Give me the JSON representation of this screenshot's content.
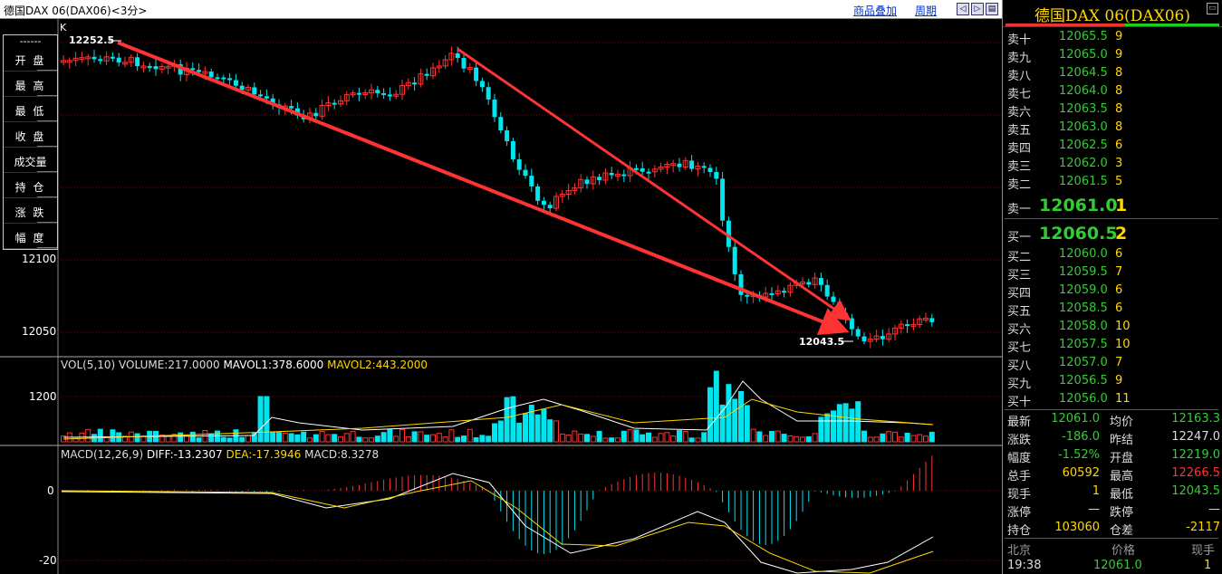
{
  "topbar": {
    "title": "德国DAX 06(DAX06)<3分>",
    "overlay_link": "商品叠加",
    "period_link": "周期",
    "btn_prev": "◁",
    "btn_next": "▷",
    "btn_menu": "▤"
  },
  "chart": {
    "k_label": "K",
    "high_mark": "12252.5",
    "low_mark": "12043.5",
    "price_axis": [
      "12100",
      "12050"
    ],
    "vol_axis": "1200",
    "macd_axis": [
      "0",
      "-20"
    ]
  },
  "infobox": {
    "dash": "------",
    "rows": [
      "开 盘",
      "最 高",
      "最 低",
      "收 盘",
      "成交量",
      "持 仓",
      "涨 跌",
      "幅 度"
    ]
  },
  "volume_indicator": {
    "name": "VOL(5,10)",
    "volume": "VOLUME:217.0000",
    "mavol1": "MAVOL1:378.6000",
    "mavol2": "MAVOL2:443.2000"
  },
  "macd_indicator": {
    "name": "MACD(12,26,9)",
    "diff": "DIFF:-13.2307",
    "dea": "DEA:-17.3946",
    "macd": "MACD:8.3278"
  },
  "panel": {
    "instrument": "德国DAX 06(DAX06)",
    "close_icon": "▭",
    "asks": [
      {
        "label": "卖十",
        "price": "12065.5",
        "vol": "9"
      },
      {
        "label": "卖九",
        "price": "12065.0",
        "vol": "9"
      },
      {
        "label": "卖八",
        "price": "12064.5",
        "vol": "8"
      },
      {
        "label": "卖七",
        "price": "12064.0",
        "vol": "8"
      },
      {
        "label": "卖六",
        "price": "12063.5",
        "vol": "8"
      },
      {
        "label": "卖五",
        "price": "12063.0",
        "vol": "8"
      },
      {
        "label": "卖四",
        "price": "12062.5",
        "vol": "6"
      },
      {
        "label": "卖三",
        "price": "12062.0",
        "vol": "3"
      },
      {
        "label": "卖二",
        "price": "12061.5",
        "vol": "5"
      }
    ],
    "ask1": {
      "label": "卖一",
      "price": "12061.0",
      "vol": "1"
    },
    "bid1": {
      "label": "买一",
      "price": "12060.5",
      "vol": "2"
    },
    "bids": [
      {
        "label": "买二",
        "price": "12060.0",
        "vol": "6"
      },
      {
        "label": "买三",
        "price": "12059.5",
        "vol": "7"
      },
      {
        "label": "买四",
        "price": "12059.0",
        "vol": "6"
      },
      {
        "label": "买五",
        "price": "12058.5",
        "vol": "6"
      },
      {
        "label": "买六",
        "price": "12058.0",
        "vol": "10"
      },
      {
        "label": "买七",
        "price": "12057.5",
        "vol": "10"
      },
      {
        "label": "买八",
        "price": "12057.0",
        "vol": "7"
      },
      {
        "label": "买九",
        "price": "12056.5",
        "vol": "9"
      },
      {
        "label": "买十",
        "price": "12056.0",
        "vol": "11"
      }
    ],
    "stats": [
      {
        "l1": "最新",
        "v1": "12061.0",
        "l2": "均价",
        "v2": "12163.3",
        "c1": "#33cc33",
        "c2": "#33cc33"
      },
      {
        "l1": "涨跌",
        "v1": "-186.0",
        "l2": "昨结",
        "v2": "12247.0",
        "c1": "#33cc33",
        "c2": "#dddddd"
      },
      {
        "l1": "幅度",
        "v1": "-1.52%",
        "l2": "开盘",
        "v2": "12219.0",
        "c1": "#33cc33",
        "c2": "#33cc33"
      },
      {
        "l1": "总手",
        "v1": "60592",
        "l2": "最高",
        "v2": "12266.5",
        "c1": "#ffd700",
        "c2": "#ff3333"
      },
      {
        "l1": "现手",
        "v1": "1",
        "l2": "最低",
        "v2": "12043.5",
        "c1": "#ffd700",
        "c2": "#33cc33"
      },
      {
        "l1": "涨停",
        "v1": "—",
        "l2": "跌停",
        "v2": "—",
        "c1": "#dddddd",
        "c2": "#dddddd"
      },
      {
        "l1": "持仓",
        "v1": "103060",
        "l2": "仓差",
        "v2": "-2117",
        "c1": "#ffd700",
        "c2": "#ffd700"
      }
    ],
    "tick_header": {
      "place": "北京",
      "price": "价格",
      "qty": "现手"
    },
    "tick_row": {
      "time": "19:38",
      "price": "12061.0",
      "qty": "1"
    }
  },
  "colors": {
    "up": "#ff3333",
    "down": "#00e5ee",
    "arrow": "#ff3333",
    "grid": "#8b0000",
    "ma1": "#ffffff",
    "ma2": "#ffd700"
  }
}
